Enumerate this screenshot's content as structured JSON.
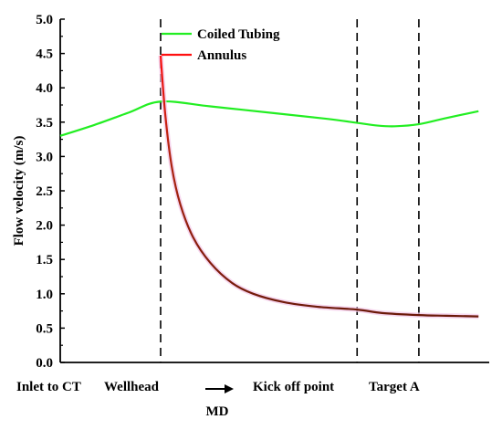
{
  "chart_data": {
    "type": "line",
    "ylabel": "Flow velocity (m/s)",
    "xlabel": "MD",
    "ylim": [
      0,
      5.0
    ],
    "xlim": [
      0,
      100
    ],
    "y_ticks": [
      "0.0",
      "0.5",
      "1.0",
      "1.5",
      "2.0",
      "2.5",
      "3.0",
      "3.5",
      "4.0",
      "4.5",
      "5.0"
    ],
    "x_markers": [
      {
        "label": "Inlet to CT",
        "x": 0,
        "dashed": false
      },
      {
        "label": "Wellhead",
        "x": 23.4,
        "dashed": true
      },
      {
        "label": "Kick off point",
        "x": 69.2,
        "dashed": true
      },
      {
        "label": "Target A",
        "x": 83.6,
        "dashed": true
      }
    ],
    "legend": {
      "position": "top-center"
    },
    "colors": {
      "coiled_tubing": "#22ee22",
      "annulus_top": "#ff1010",
      "annulus_bottom": "#6b1a0a"
    },
    "series": [
      {
        "name": "Coiled Tubing",
        "x": [
          0,
          8,
          16,
          23.4,
          35,
          50,
          62,
          69.2,
          74,
          78,
          83.6,
          90,
          97.5
        ],
        "y": [
          3.3,
          3.46,
          3.64,
          3.8,
          3.73,
          3.63,
          3.55,
          3.49,
          3.45,
          3.44,
          3.47,
          3.56,
          3.66
        ]
      },
      {
        "name": "Annulus",
        "x": [
          23.4,
          24.5,
          26,
          28,
          31,
          35,
          40,
          45,
          52,
          60,
          69.2,
          75,
          83.6,
          90,
          97.5
        ],
        "y": [
          4.47,
          3.6,
          2.85,
          2.3,
          1.82,
          1.45,
          1.16,
          1.0,
          0.88,
          0.81,
          0.77,
          0.72,
          0.69,
          0.68,
          0.67
        ]
      }
    ]
  }
}
